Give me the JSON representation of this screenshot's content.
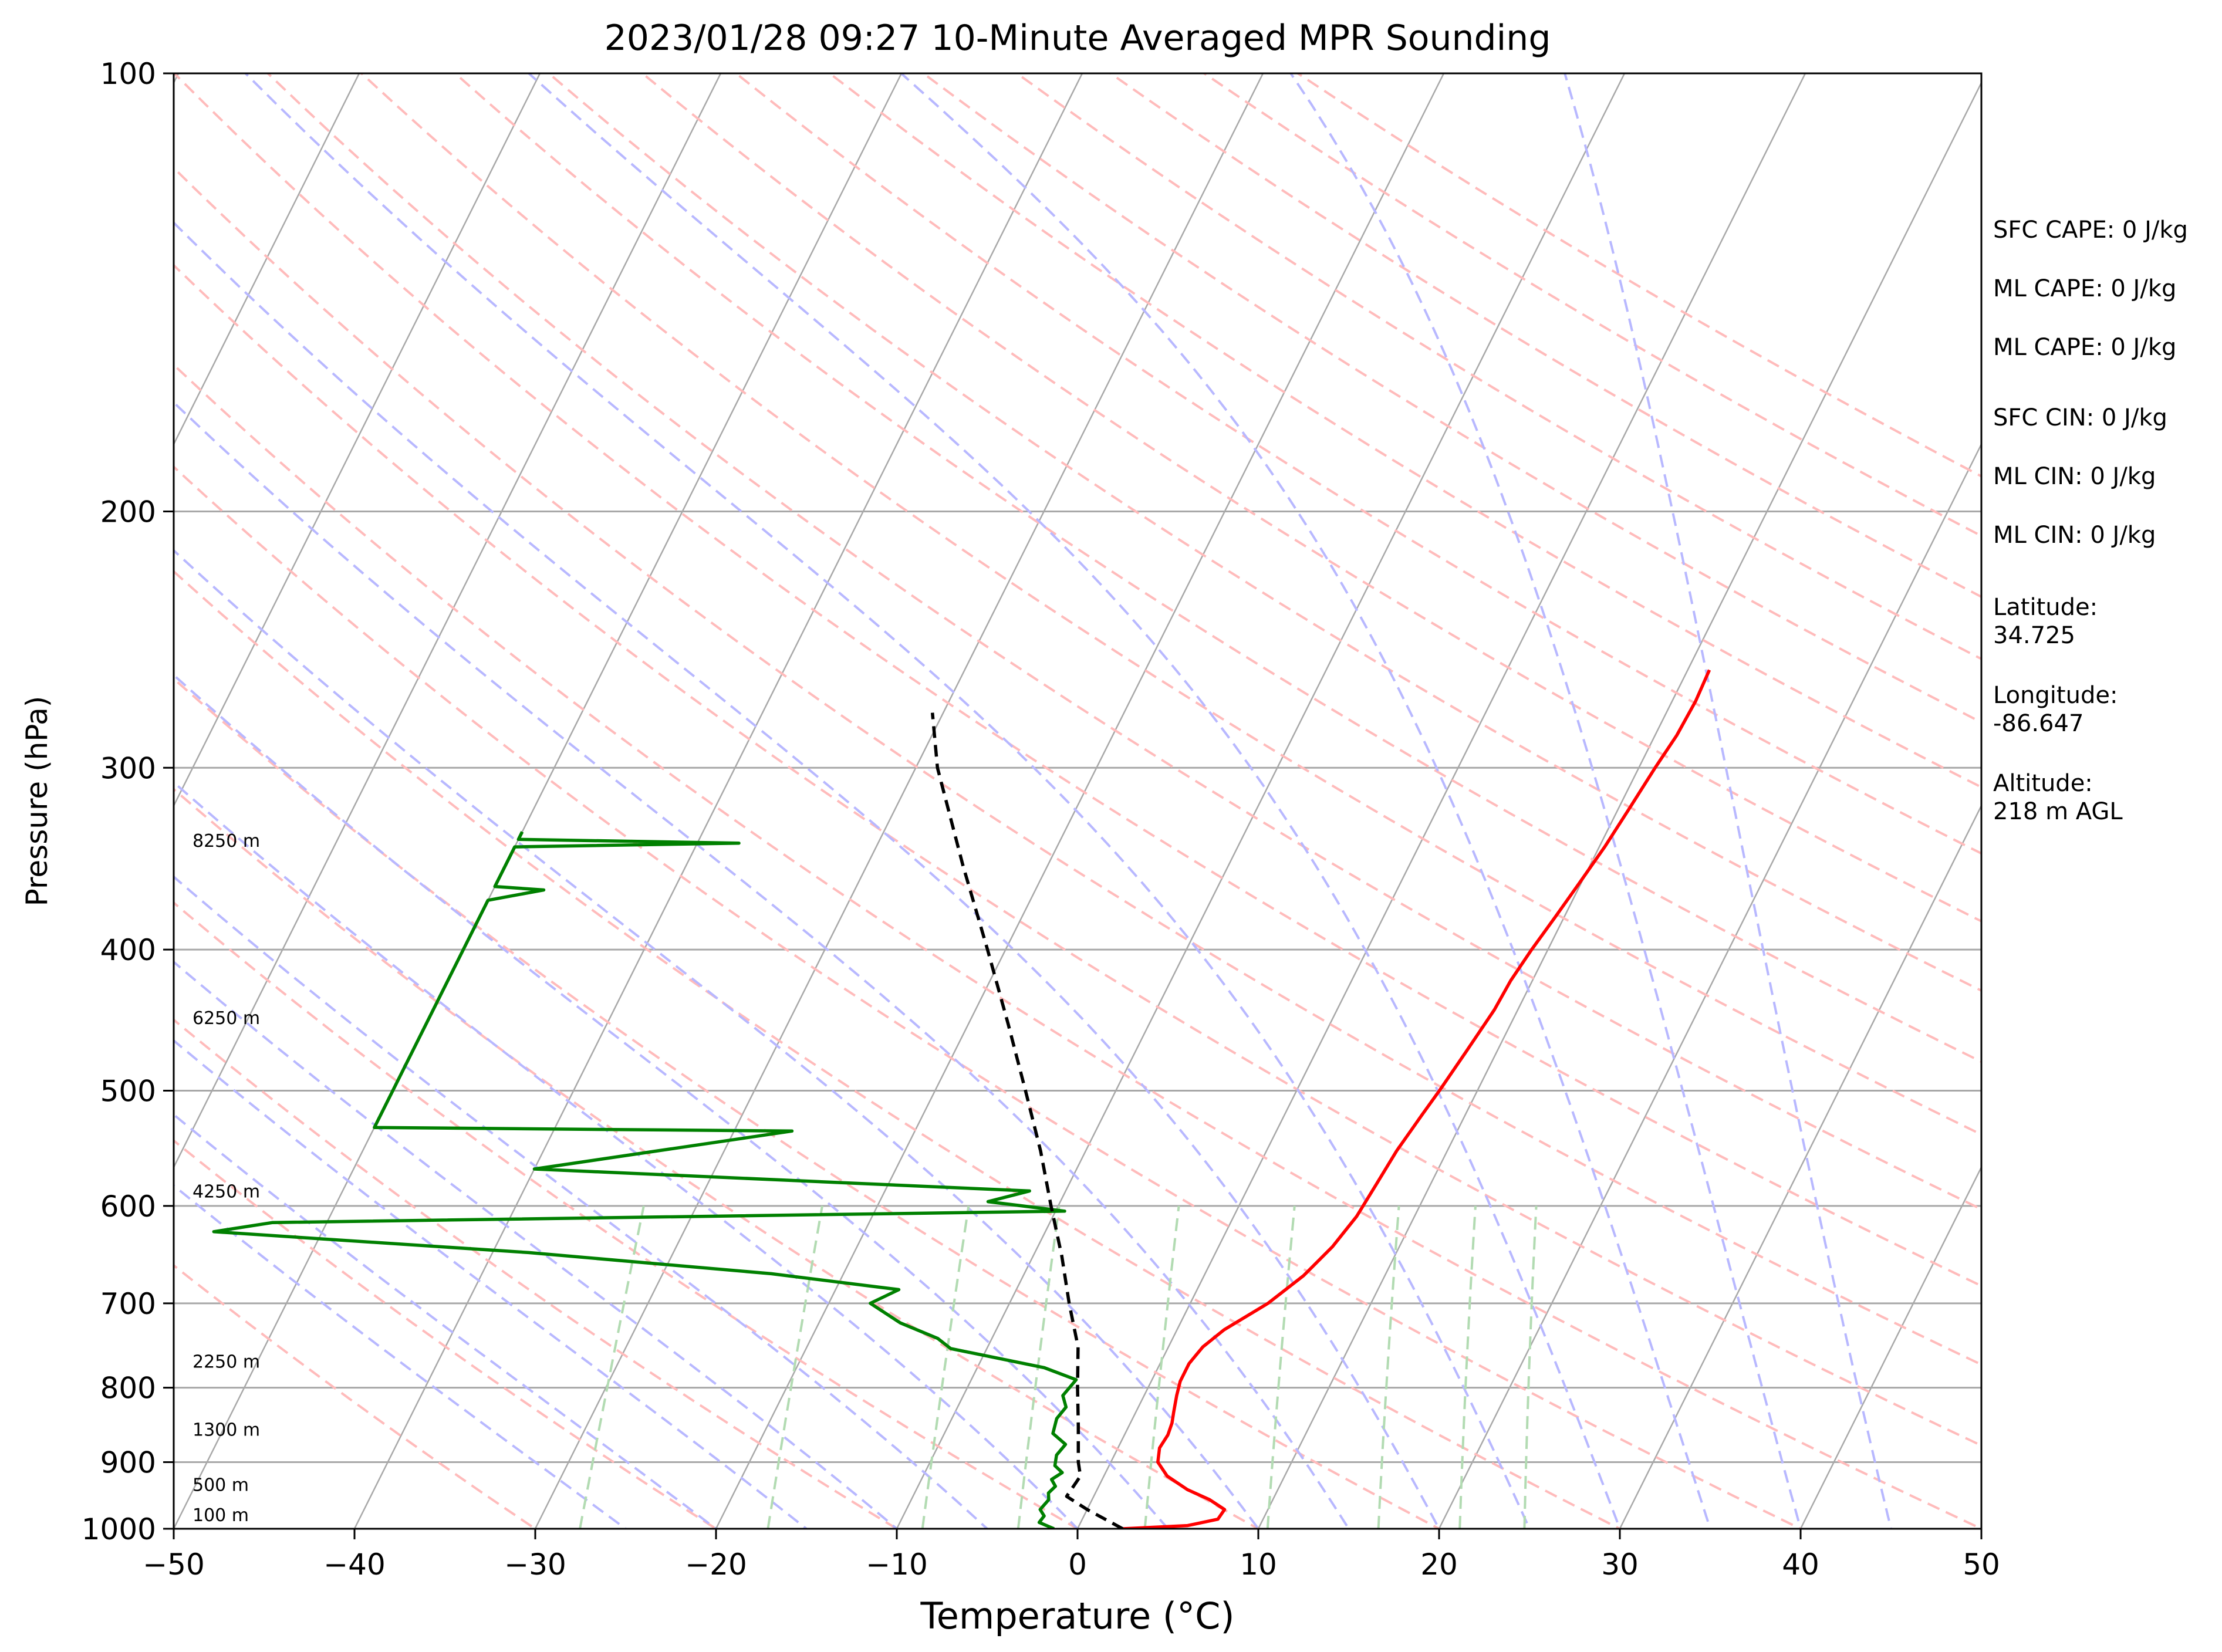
{
  "chart_data": {
    "type": "line",
    "title": "2023/01/28 09:27 10-Minute Averaged MPR Sounding",
    "xlabel": "Temperature (°C)",
    "ylabel": "Pressure (hPa)",
    "xlim": [
      -50,
      50
    ],
    "ylim": [
      1000,
      100
    ],
    "y_scale": "log",
    "grid": true,
    "x_ticks": [
      -50,
      -40,
      -30,
      -20,
      -10,
      0,
      10,
      20,
      30,
      40,
      50
    ],
    "x_tick_labels": [
      "−50",
      "−40",
      "−30",
      "−20",
      "−10",
      "0",
      "10",
      "20",
      "30",
      "40",
      "50"
    ],
    "y_ticks": [
      1000,
      900,
      800,
      700,
      600,
      500,
      400,
      300,
      200,
      100
    ],
    "y_tick_labels": [
      "1000",
      "900",
      "800",
      "700",
      "600",
      "500",
      "400",
      "300",
      "200",
      "100"
    ],
    "series": [
      {
        "role": "temperature",
        "color": "#ff0000",
        "style": "solid",
        "points": [
          [
            1000,
            2.5
          ],
          [
            995,
            6.0
          ],
          [
            985,
            7.5
          ],
          [
            970,
            7.6
          ],
          [
            955,
            6.5
          ],
          [
            940,
            5.0
          ],
          [
            920,
            3.5
          ],
          [
            900,
            2.6
          ],
          [
            880,
            2.3
          ],
          [
            862,
            2.4
          ],
          [
            846,
            2.3
          ],
          [
            832,
            2.1
          ],
          [
            810,
            1.8
          ],
          [
            792,
            1.6
          ],
          [
            770,
            1.6
          ],
          [
            750,
            1.9
          ],
          [
            730,
            2.6
          ],
          [
            700,
            4.3
          ],
          [
            670,
            5.5
          ],
          [
            640,
            6.3
          ],
          [
            610,
            6.8
          ],
          [
            580,
            7.0
          ],
          [
            550,
            7.2
          ],
          [
            520,
            7.6
          ],
          [
            500,
            7.9
          ],
          [
            470,
            8.3
          ],
          [
            440,
            8.7
          ],
          [
            420,
            8.8
          ],
          [
            400,
            9.1
          ],
          [
            380,
            9.5
          ],
          [
            360,
            9.9
          ],
          [
            340,
            10.3
          ],
          [
            320,
            10.6
          ],
          [
            300,
            10.9
          ],
          [
            285,
            11.2
          ],
          [
            270,
            11.3
          ],
          [
            257,
            11.2
          ]
        ]
      },
      {
        "role": "dewpoint",
        "color": "#008000",
        "style": "solid",
        "points": [
          [
            1000,
            -1.3
          ],
          [
            990,
            -2.3
          ],
          [
            980,
            -2.2
          ],
          [
            970,
            -2.6
          ],
          [
            955,
            -2.4
          ],
          [
            945,
            -2.6
          ],
          [
            935,
            -2.4
          ],
          [
            925,
            -2.8
          ],
          [
            915,
            -2.4
          ],
          [
            905,
            -3.0
          ],
          [
            890,
            -3.2
          ],
          [
            875,
            -3.0
          ],
          [
            860,
            -4.0
          ],
          [
            840,
            -4.2
          ],
          [
            825,
            -4.0
          ],
          [
            810,
            -4.5
          ],
          [
            790,
            -4.2
          ],
          [
            775,
            -6.3
          ],
          [
            752,
            -12.0
          ],
          [
            740,
            -13.0
          ],
          [
            722,
            -15.5
          ],
          [
            700,
            -17.7
          ],
          [
            685,
            -16.5
          ],
          [
            668,
            -24.0
          ],
          [
            646,
            -38.0
          ],
          [
            625,
            -56.0
          ],
          [
            616,
            -53.0
          ],
          [
            605,
            -9.5
          ],
          [
            596,
            -14.0
          ],
          [
            586,
            -12.0
          ],
          [
            566,
            -40.0
          ],
          [
            533,
            -26.8
          ],
          [
            530,
            -50.0
          ],
          [
            370,
            -50.0
          ],
          [
            364,
            -47.2
          ],
          [
            362,
            -50.0
          ],
          [
            340,
            -50.0
          ],
          [
            338,
            -37.7
          ],
          [
            336,
            -50.0
          ],
          [
            332,
            -50.0
          ]
        ]
      },
      {
        "role": "parcel",
        "color": "#000000",
        "style": "dashed",
        "points": [
          [
            1000,
            2.5
          ],
          [
            970,
            0.0
          ],
          [
            950,
            -1.5
          ],
          [
            920,
            -1.3
          ],
          [
            900,
            -1.8
          ],
          [
            850,
            -2.8
          ],
          [
            800,
            -3.9
          ],
          [
            750,
            -5.0
          ],
          [
            700,
            -6.7
          ],
          [
            650,
            -8.4
          ],
          [
            600,
            -10.4
          ],
          [
            550,
            -12.5
          ],
          [
            500,
            -15.0
          ],
          [
            450,
            -17.8
          ],
          [
            400,
            -21.0
          ],
          [
            350,
            -24.7
          ],
          [
            300,
            -28.8
          ],
          [
            275,
            -30.6
          ]
        ]
      }
    ],
    "height_labels": [
      {
        "text": "100 m",
        "pressure": 988
      },
      {
        "text": "500 m",
        "pressure": 942
      },
      {
        "text": "1300 m",
        "pressure": 863
      },
      {
        "text": "2250 m",
        "pressure": 775
      },
      {
        "text": "4250 m",
        "pressure": 592
      },
      {
        "text": "6250 m",
        "pressure": 450
      },
      {
        "text": "8250 m",
        "pressure": 340
      }
    ],
    "isotherm_skew_temps": [
      -170,
      -160,
      -150,
      -140,
      -130,
      -120,
      -110,
      -100,
      -90,
      -80,
      -70,
      -60,
      -50,
      -40,
      -30,
      -20,
      -10,
      0,
      10,
      20,
      30,
      40,
      50
    ],
    "dry_adiabat_temps": [
      -30,
      -20,
      -10,
      0,
      10,
      20,
      30,
      40,
      50,
      60,
      70,
      80,
      90,
      100,
      110,
      120,
      130,
      140,
      150,
      160,
      170,
      180,
      190,
      200
    ],
    "moist_adiabat_temps": [
      -25,
      -20,
      -15,
      -10,
      -5,
      0,
      5,
      10,
      15,
      20,
      25,
      30,
      35,
      40,
      45
    ],
    "mixing_ratio_values": [
      0.4,
      1,
      2,
      3,
      5,
      8,
      12,
      16,
      20
    ],
    "annotations": [
      {
        "text": "SFC CAPE: 0 J/kg"
      },
      {
        "text": "ML CAPE: 0 J/kg"
      },
      {
        "text": "ML CAPE: 0 J/kg"
      },
      {
        "text": "SFC CIN: 0 J/kg"
      },
      {
        "text": "ML CIN: 0 J/kg"
      },
      {
        "text": "ML CIN: 0 J/kg"
      },
      {
        "text": "Latitude:\n34.725"
      },
      {
        "text": "Longitude:\n-86.647"
      },
      {
        "text": "Altitude:\n218 m AGL"
      }
    ],
    "colors": {
      "temperature": "#ff0000",
      "dewpoint": "#008000",
      "parcel": "#000000",
      "dry_adiabat": "#ffbbbb",
      "moist_adiabat": "#b8b8ff",
      "mixing_ratio": "#b2dbb2",
      "isotherm": "#a8a8a8",
      "isobar": "#a8a8a8"
    }
  }
}
